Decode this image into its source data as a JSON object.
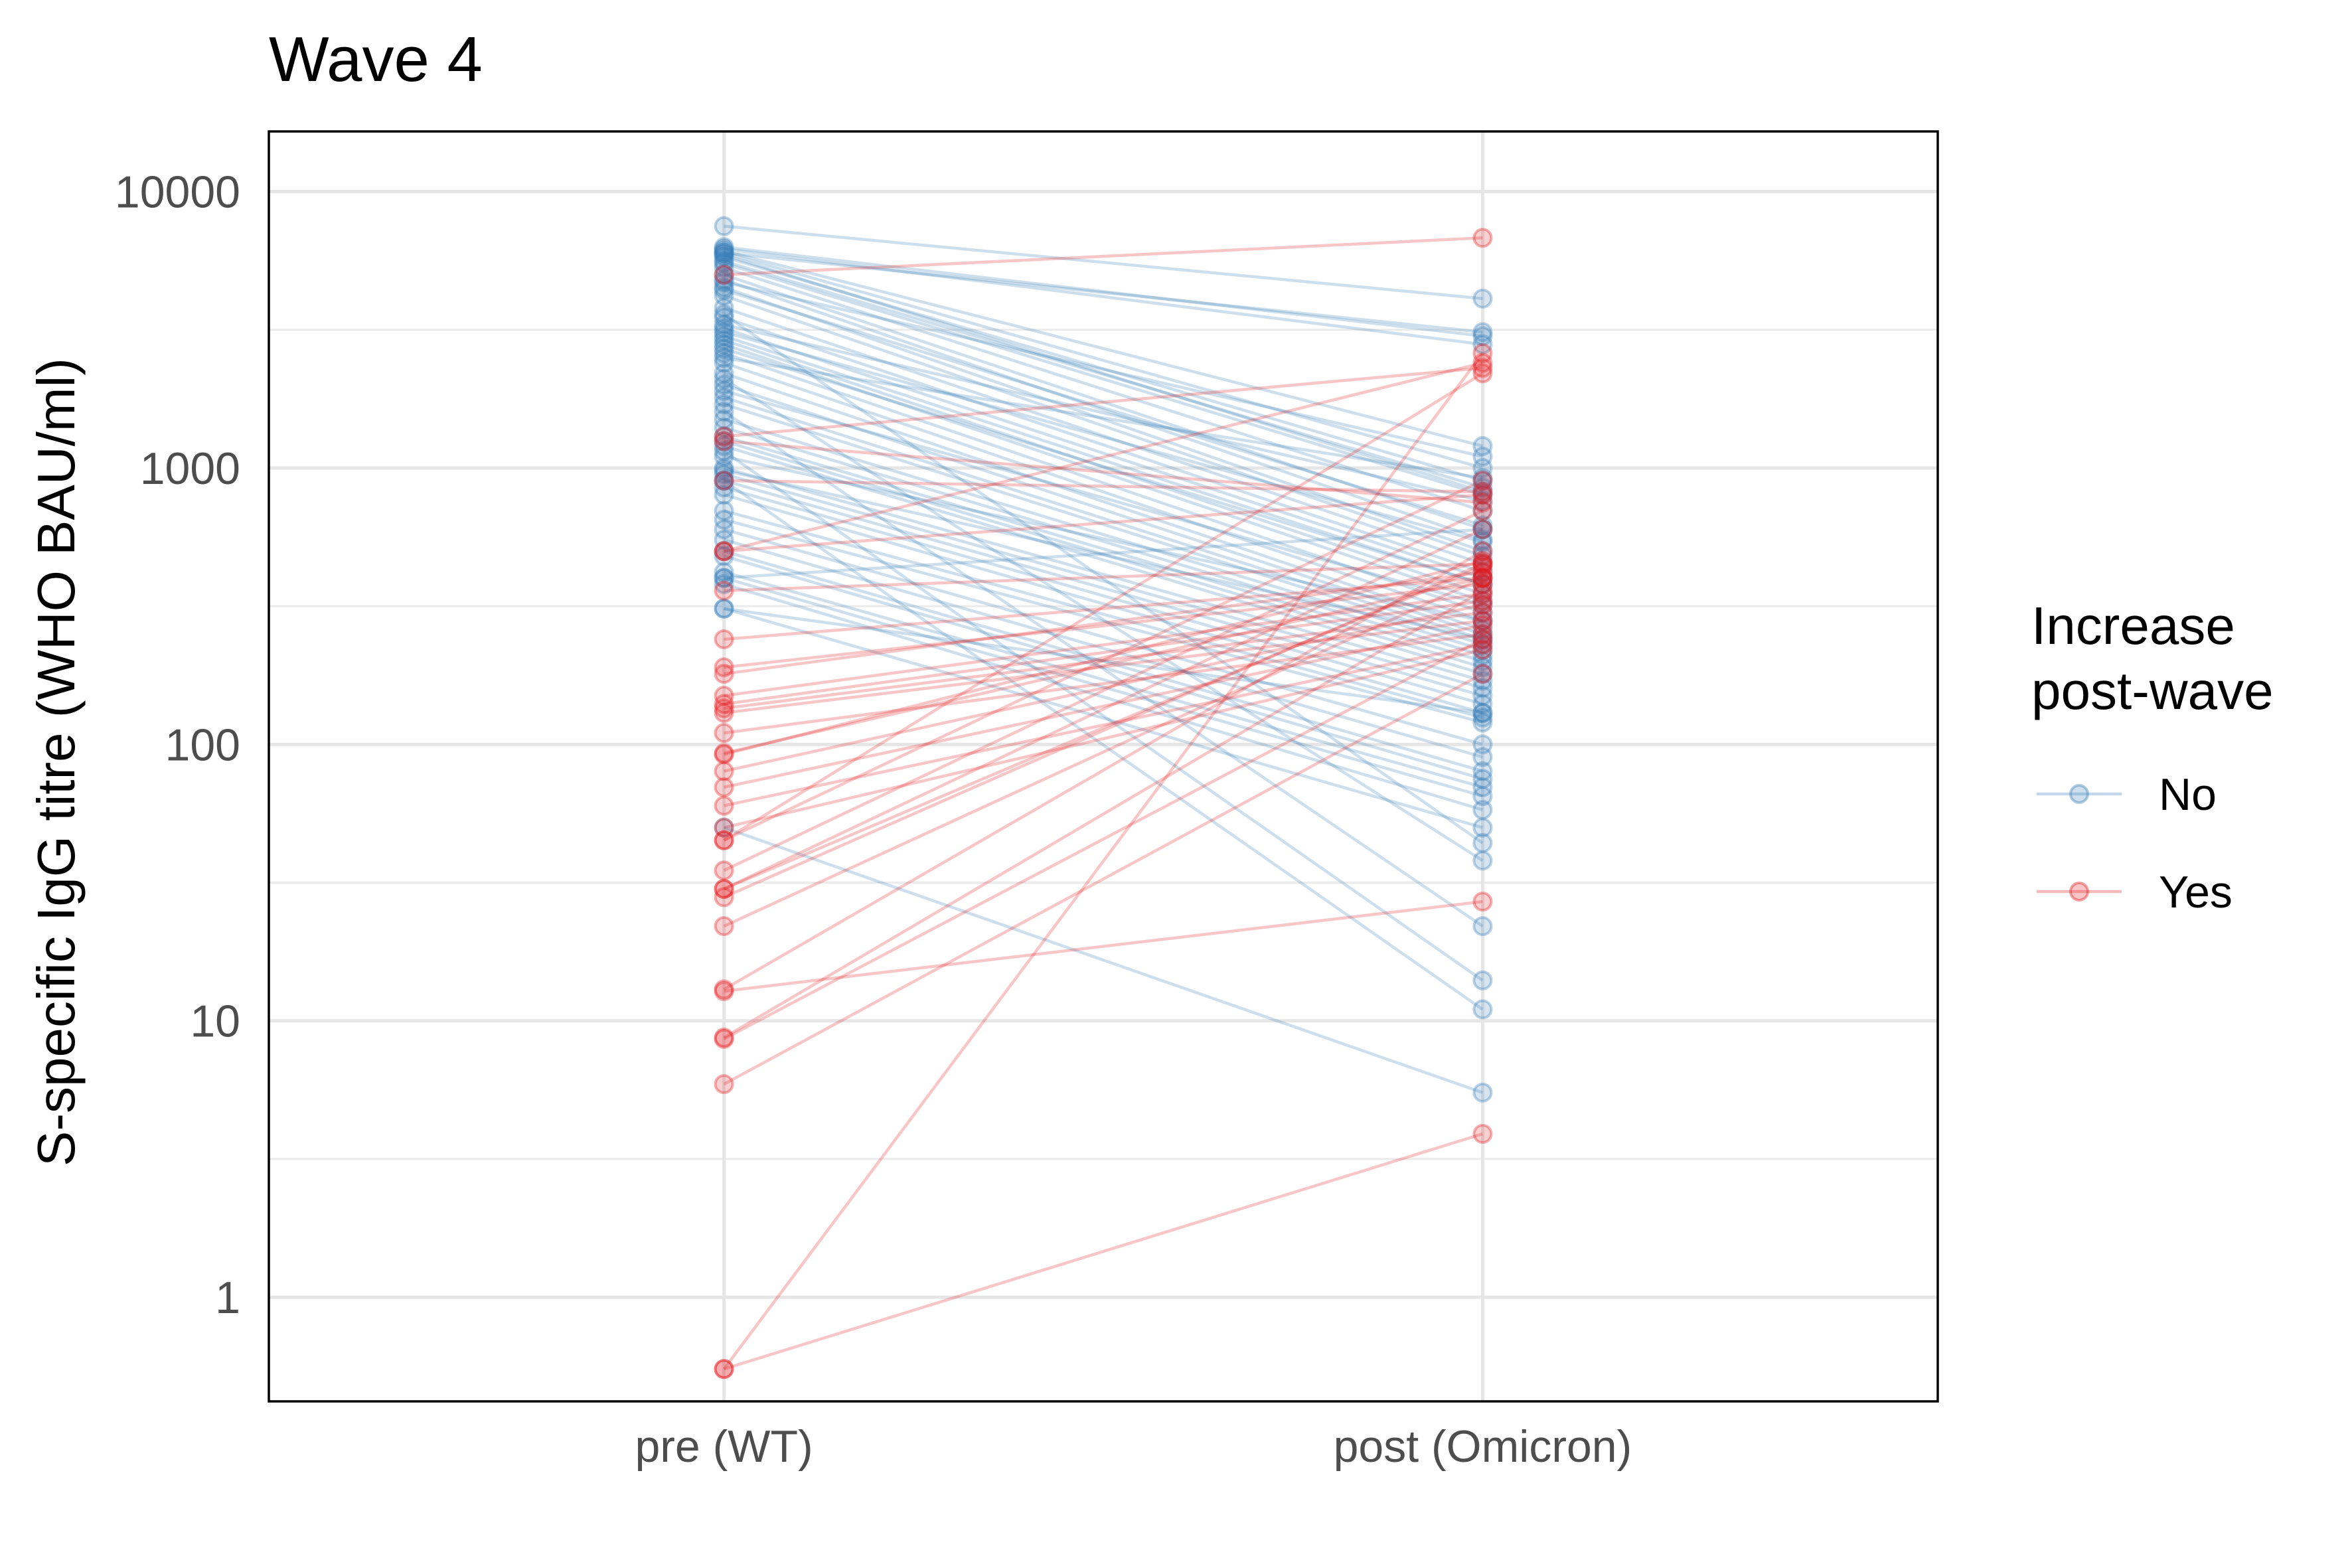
{
  "chart_data": {
    "type": "line",
    "title": "Wave 4",
    "xlabel": "",
    "ylabel": "S-specific IgG titre (WHO BAU/ml)",
    "categories": [
      "pre (WT)",
      "post (Omicron)"
    ],
    "y_scale": "log10",
    "ylim": [
      0.42,
      16500
    ],
    "y_ticks": [
      1,
      10,
      100,
      1000,
      10000
    ],
    "y_tick_labels": [
      "1",
      "10",
      "100",
      "1000",
      "10000"
    ],
    "grid": true,
    "legend": {
      "title": "Increase post-wave",
      "title_lines": [
        "Increase",
        "post-wave"
      ],
      "position": "right",
      "entries": [
        {
          "key": "No",
          "label": "No",
          "color": "#377EB8"
        },
        {
          "key": "Yes",
          "label": "Yes",
          "color": "#E41A1C"
        }
      ]
    },
    "series": [
      {
        "name": "No",
        "color": "#377EB8",
        "pairs": [
          [
            7500,
            4100
          ],
          [
            6300,
            3000
          ],
          [
            6200,
            2800
          ],
          [
            6100,
            1200
          ],
          [
            6000,
            1000
          ],
          [
            5800,
            900
          ],
          [
            5600,
            850
          ],
          [
            5500,
            800
          ],
          [
            5300,
            700
          ],
          [
            5000,
            600
          ],
          [
            4800,
            550
          ],
          [
            4500,
            500
          ],
          [
            4200,
            480
          ],
          [
            3800,
            450
          ],
          [
            3500,
            420
          ],
          [
            3200,
            400
          ],
          [
            3000,
            380
          ],
          [
            2900,
            350
          ],
          [
            2800,
            330
          ],
          [
            2600,
            300
          ],
          [
            2400,
            280
          ],
          [
            2200,
            260
          ],
          [
            2000,
            250
          ],
          [
            1800,
            240
          ],
          [
            1700,
            230
          ],
          [
            1500,
            220
          ],
          [
            1400,
            210
          ],
          [
            1300,
            200
          ],
          [
            1250,
            190
          ],
          [
            1200,
            180
          ],
          [
            1000,
            170
          ],
          [
            950,
            160
          ],
          [
            900,
            150
          ],
          [
            850,
            140
          ],
          [
            800,
            130
          ],
          [
            700,
            125
          ],
          [
            650,
            120
          ],
          [
            600,
            100
          ],
          [
            550,
            90
          ],
          [
            500,
            80
          ],
          [
            480,
            75
          ],
          [
            420,
            70
          ],
          [
            400,
            65
          ],
          [
            380,
            58
          ],
          [
            310,
            50
          ],
          [
            5900,
            820
          ],
          [
            4400,
            620
          ],
          [
            3100,
            540
          ],
          [
            2700,
            380
          ],
          [
            1900,
            320
          ],
          [
            1100,
            280
          ],
          [
            980,
            240
          ],
          [
            3600,
            44
          ],
          [
            2100,
            38
          ],
          [
            1600,
            22
          ],
          [
            1150,
            14
          ],
          [
            900,
            11
          ],
          [
            400,
            600
          ],
          [
            310,
            130
          ],
          [
            50,
            5.5
          ],
          [
            6000,
            3100
          ],
          [
            4700,
            1100
          ],
          [
            3300,
            760
          ],
          [
            2500,
            920
          ]
        ]
      },
      {
        "name": "Yes",
        "color": "#E41A1C",
        "pairs": [
          [
            5000,
            6800
          ],
          [
            1300,
            2300
          ],
          [
            500,
            2400
          ],
          [
            500,
            800
          ],
          [
            360,
            450
          ],
          [
            240,
            400
          ],
          [
            190,
            380
          ],
          [
            180,
            420
          ],
          [
            150,
            350
          ],
          [
            140,
            330
          ],
          [
            135,
            300
          ],
          [
            130,
            280
          ],
          [
            110,
            250
          ],
          [
            93,
            400
          ],
          [
            92,
            460
          ],
          [
            80,
            320
          ],
          [
            70,
            270
          ],
          [
            60,
            230
          ],
          [
            50,
            220
          ],
          [
            45,
            900
          ],
          [
            35,
            700
          ],
          [
            30,
            600
          ],
          [
            28,
            450
          ],
          [
            22,
            400
          ],
          [
            13,
            500
          ],
          [
            12.8,
            27
          ],
          [
            8.7,
            360
          ],
          [
            8.6,
            240
          ],
          [
            5.9,
            180
          ],
          [
            0.55,
            2600
          ],
          [
            0.55,
            3.9
          ],
          [
            1250,
            750
          ],
          [
            900,
            820
          ],
          [
            45,
            2200
          ],
          [
            30,
            440
          ]
        ]
      }
    ]
  }
}
